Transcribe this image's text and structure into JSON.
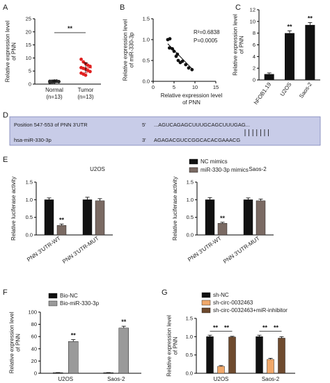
{
  "chart_data": [
    {
      "panel": "A",
      "type": "scatter",
      "ylabel": "Relative expression level\nof PNN",
      "categories": [
        "Normal\n(n=13)",
        "Tumor\n(n=13)"
      ],
      "yticks": [
        "0",
        "5",
        "10",
        "15",
        "20",
        "25"
      ],
      "ylim": [
        0,
        25
      ],
      "groups": [
        {
          "values": [
            0.7,
            0.8,
            0.9,
            1.0,
            1.0,
            1.1,
            1.1,
            1.2,
            1.2,
            0.9,
            1.0,
            1.1,
            0.8
          ],
          "mean": 1.0,
          "sd": 0.2,
          "color": "#2b2b2b"
        },
        {
          "values": [
            9.5,
            8.5,
            7.8,
            7.2,
            6.8,
            6.3,
            6.0,
            5.7,
            5.2,
            4.8,
            4.2,
            3.8,
            3.4
          ],
          "mean": 6.2,
          "sd": 1.9,
          "color": "#e02020"
        }
      ],
      "significance": "**"
    },
    {
      "panel": "B",
      "type": "scatter",
      "xlabel": "Relative expression level\nof PNN",
      "ylabel": "Relative expression level\nof miR-330-3p",
      "xticks": [
        "0",
        "5",
        "10",
        "15"
      ],
      "xlim": [
        0,
        15
      ],
      "yticks": [
        "0.0",
        "0.5",
        "1.0",
        "1.5"
      ],
      "ylim": [
        0,
        1.5
      ],
      "points": [
        [
          3.5,
          1.0
        ],
        [
          4.0,
          1.02
        ],
        [
          3.9,
          0.8
        ],
        [
          4.6,
          0.78
        ],
        [
          5.0,
          0.72
        ],
        [
          5.5,
          0.6
        ],
        [
          6.0,
          0.5
        ],
        [
          5.8,
          0.65
        ],
        [
          6.5,
          0.45
        ],
        [
          7.0,
          0.48
        ],
        [
          7.8,
          0.4
        ],
        [
          8.5,
          0.32
        ],
        [
          9.3,
          0.28
        ]
      ],
      "fit": [
        [
          3.5,
          0.9
        ],
        [
          9.5,
          0.28
        ]
      ],
      "stats": [
        "R²=0.6838",
        "P=0.0005"
      ]
    },
    {
      "panel": "C",
      "type": "bar",
      "ylabel": "Relative expression level\nof PNN",
      "categories": [
        "hFOB1.19",
        "U2OS",
        "Saos-2"
      ],
      "values": [
        1.0,
        8.0,
        9.4
      ],
      "errors": [
        0.2,
        0.4,
        0.4
      ],
      "yticks": [
        "0",
        "2",
        "4",
        "6",
        "8",
        "10",
        "12"
      ],
      "ylim": [
        0,
        12
      ],
      "significance": [
        "",
        "**",
        "**"
      ]
    },
    {
      "panel": "E1",
      "type": "bar",
      "title": "U2OS",
      "ylabel": "Relative luciferase activity",
      "categories": [
        "PNN 3'UTR-WT",
        "PNN 3'UTR-MUT"
      ],
      "series": [
        {
          "name": "NC mimics",
          "values": [
            1.0,
            1.0
          ],
          "errors": [
            0.05,
            0.07
          ],
          "color": "#111111"
        },
        {
          "name": "miR-330-3p mimics",
          "values": [
            0.27,
            0.97
          ],
          "errors": [
            0.04,
            0.06
          ],
          "color": "#7a6a63"
        }
      ],
      "yticks": [
        "0.0",
        "0.5",
        "1.0",
        "1.5"
      ],
      "ylim": [
        0,
        1.5
      ],
      "significance": [
        "**",
        ""
      ]
    },
    {
      "panel": "E2",
      "type": "bar",
      "title": "Saos-2",
      "ylabel": "Relative luciferase activity",
      "categories": [
        "PNN 3'UTR-WT",
        "PNN 3'UTR-MUT"
      ],
      "series": [
        {
          "name": "NC mimics",
          "values": [
            1.0,
            1.0
          ],
          "errors": [
            0.06,
            0.05
          ],
          "color": "#111111"
        },
        {
          "name": "miR-330-3p mimics",
          "values": [
            0.33,
            0.97
          ],
          "errors": [
            0.03,
            0.05
          ],
          "color": "#7a6a63"
        }
      ],
      "yticks": [
        "0.0",
        "0.5",
        "1.0",
        "1.5"
      ],
      "ylim": [
        0,
        1.5
      ],
      "significance": [
        "**",
        ""
      ]
    },
    {
      "panel": "F",
      "type": "bar",
      "ylabel": "Relative expression level\nof PNN",
      "categories": [
        "U2OS",
        "Saos-2"
      ],
      "series": [
        {
          "name": "Bio-NC",
          "values": [
            1.0,
            1.0
          ],
          "errors": [
            0.1,
            0.1
          ],
          "color": "#111111"
        },
        {
          "name": "Bio-miR-330-3p",
          "values": [
            52,
            74
          ],
          "errors": [
            3,
            3
          ],
          "color": "#9a9a9a"
        }
      ],
      "yticks": [
        "0",
        "20",
        "40",
        "60",
        "80",
        "100"
      ],
      "ylim": [
        0,
        100
      ],
      "significance": [
        "**",
        "**"
      ]
    },
    {
      "panel": "G",
      "type": "bar",
      "ylabel": "Relative expression level\nof PNN",
      "categories": [
        "U2OS",
        "Saos-2"
      ],
      "series": [
        {
          "name": "sh-NC",
          "values": [
            1.0,
            1.0
          ],
          "errors": [
            0.04,
            0.04
          ],
          "color": "#111111"
        },
        {
          "name": "sh-circ-0032463",
          "values": [
            0.19,
            0.38
          ],
          "errors": [
            0.02,
            0.03
          ],
          "color": "#f0a86a"
        },
        {
          "name": "sh-circ-0032463+miR-inhibitor",
          "values": [
            0.99,
            0.96
          ],
          "errors": [
            0.02,
            0.04
          ],
          "color": "#6e4a2e"
        }
      ],
      "yticks": [
        "0.0",
        "0.5",
        "1.0",
        "1.5"
      ],
      "ylim": [
        0,
        1.5
      ],
      "significance_pairs": [
        [
          "**",
          "**"
        ],
        [
          "**",
          "**"
        ]
      ]
    }
  ],
  "panel_labels": [
    "A",
    "B",
    "C",
    "D",
    "E",
    "F",
    "G"
  ],
  "panel_d": {
    "line1_left": "Position 547-553 of PNN 3'UTR",
    "line1_mid": "5'",
    "line1_seq": "...AGUCAGAGCUUUGCAGCUUUGAG...",
    "line2_left": "hsa-miR-330-3p",
    "line2_mid": "3'",
    "line2_seq": "AGAGACGUCCGGCACACGAAACG",
    "box_color": "#c8cce8",
    "mir_color": "#2a5db0"
  }
}
